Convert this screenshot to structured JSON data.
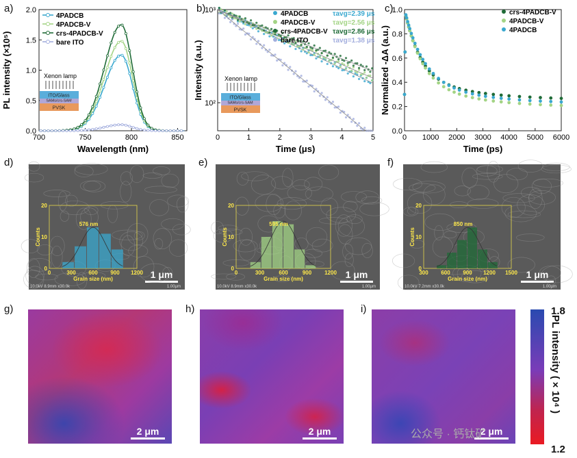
{
  "panels": {
    "a": "a)",
    "b": "b)",
    "c": "c)",
    "d": "d)",
    "e": "e)",
    "f": "f)",
    "g": "g)",
    "h": "h)",
    "i": "i)"
  },
  "colors": {
    "blue": "#3aa8cf",
    "lightgreen": "#a3d485",
    "darkgreen": "#1f6b37",
    "lavender": "#a3aede",
    "ppl_blue": "#8c98d2"
  },
  "chart_data": [
    {
      "id": "a",
      "type": "line",
      "title": "",
      "xlabel": "Wavelength (nm)",
      "ylabel": "PL intensity (×10⁵)",
      "xlim": [
        700,
        860
      ],
      "ylim": [
        0,
        2.0
      ],
      "xticks": [
        700,
        750,
        800,
        850
      ],
      "yticks": [
        0.0,
        0.5,
        1.0,
        1.5,
        2.0
      ],
      "peak_x": 789,
      "series": [
        {
          "name": "4PADCB",
          "peak": 1.25,
          "color": "#3aa8cf"
        },
        {
          "name": "4PADCB-V",
          "peak": 1.48,
          "color": "#a3d485"
        },
        {
          "name": "crs-4PADCB-V",
          "peak": 1.75,
          "color": "#1f6b37"
        },
        {
          "name": "bare ITO",
          "peak": 0.1,
          "color": "#a3aede"
        }
      ],
      "inset": {
        "lamp": "Xenon lamp",
        "layers": [
          "ITO/Glass",
          "SAMs/crs-SAM",
          "PVSK"
        ]
      }
    },
    {
      "id": "b",
      "type": "scatter",
      "xlabel": "Time (μs)",
      "ylabel": "Intensity (a.u.)",
      "xlim": [
        0,
        5
      ],
      "ylim_log": [
        50,
        1000
      ],
      "xticks": [
        0,
        1,
        2,
        3,
        4,
        5
      ],
      "ytick_labels": [
        "10³",
        "10²"
      ],
      "series": [
        {
          "name": "4PADCB",
          "tau": "τavg=2.39 μs",
          "tau_us": 2.39,
          "color": "#3aa8cf"
        },
        {
          "name": "4PADCB-V",
          "tau": "τavg=2.56 μs",
          "tau_us": 2.56,
          "color": "#a3d485"
        },
        {
          "name": "crs-4PADCB-V",
          "tau": "τavg=2.86 μs",
          "tau_us": 2.86,
          "color": "#1f6b37"
        },
        {
          "name": "bare ITO",
          "tau": "τavg=1.38 μs",
          "tau_us": 1.38,
          "color": "#a3aede"
        }
      ],
      "inset": {
        "lamp": "Xenon lamp",
        "layers": [
          "ITO/Glass",
          "SAMs/crs-SAM",
          "PVSK"
        ]
      }
    },
    {
      "id": "c",
      "type": "scatter",
      "xlabel": "Time (ps)",
      "ylabel": "Normalized -ΔA (a.u.)",
      "xlim": [
        0,
        6000
      ],
      "ylim": [
        0.0,
        1.0
      ],
      "xticks": [
        0,
        1000,
        2000,
        3000,
        4000,
        5000,
        6000
      ],
      "yticks": [
        0.0,
        0.2,
        0.4,
        0.6,
        0.8,
        1.0
      ],
      "series": [
        {
          "name": "crs-4PADCB-V",
          "plateau": 0.25,
          "color": "#1f6b37"
        },
        {
          "name": "4PADCB-V",
          "plateau": 0.19,
          "color": "#a3d485"
        },
        {
          "name": "4PADCB",
          "plateau": 0.22,
          "color": "#3aa8cf"
        }
      ]
    },
    {
      "id": "d",
      "type": "bar",
      "xlabel": "Grain size (nm)",
      "ylabel": "Counts",
      "avg_label": "576 nm",
      "xticks": [
        "0",
        "300",
        "600",
        "900",
        "1200"
      ],
      "yticks": [
        "0",
        "10",
        "20"
      ],
      "values": [
        2,
        7,
        13,
        11,
        6
      ],
      "color": "#3aa8cf"
    },
    {
      "id": "e",
      "type": "bar",
      "xlabel": "Grain size (nm)",
      "ylabel": "Counts",
      "avg_label": "595 nm",
      "xticks": [
        "0",
        "300",
        "600",
        "900",
        "1200"
      ],
      "yticks": [
        "0",
        "10",
        "20"
      ],
      "values": [
        2,
        10,
        15,
        14,
        6,
        1
      ],
      "color": "#a3d485"
    },
    {
      "id": "f",
      "type": "bar",
      "xlabel": "Grain size (nm)",
      "ylabel": "Counts",
      "avg_label": "850 nm",
      "xticks": [
        "300",
        "600",
        "900",
        "1200",
        "1500"
      ],
      "yticks": [
        "0",
        "10",
        "20"
      ],
      "values": [
        1,
        5,
        9,
        13,
        6,
        2
      ],
      "color": "#1f6b37"
    }
  ],
  "sem_info": {
    "d": {
      "footer": "10.0kV 8.9mm x30.0k",
      "scale_small": "1.00μm",
      "scale": "1 μm"
    },
    "e": {
      "footer": "10.0kV 8.9mm x30.0k",
      "scale_small": "1.00μm",
      "scale": "1 μm"
    },
    "f": {
      "footer": "10.0kV 7.2mm x30.0k",
      "scale_small": "1.00μm",
      "scale": "1 μm"
    }
  },
  "maps": {
    "scale": "2 μm"
  },
  "colorbar": {
    "max": "1.8",
    "min": "1.2",
    "title": "PL intensity (×10⁴ )"
  },
  "watermark": "公众号 · 钙钛矿"
}
